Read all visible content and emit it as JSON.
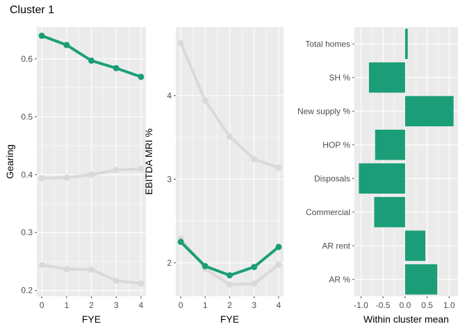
{
  "title": "Cluster 1",
  "colors": {
    "highlight": "#1b9e77",
    "muted": "#d9d9d9",
    "panel_bg": "#ebebeb"
  },
  "chart_data": [
    {
      "type": "line",
      "xlabel": "FYE",
      "ylabel": "Gearing",
      "x": [
        0,
        1,
        2,
        3,
        4
      ],
      "xlim": [
        -0.2,
        4.2
      ],
      "ylim": [
        0.19,
        0.655
      ],
      "yticks": [
        0.2,
        0.3,
        0.4,
        0.5,
        0.6
      ],
      "ytick_labels": [
        "0.2",
        "0.3",
        "0.4",
        "0.5",
        "0.6"
      ],
      "xtick_labels": [
        "0",
        "1",
        "2",
        "3",
        "4"
      ],
      "grid": true,
      "series": [
        {
          "values": [
            0.394,
            0.395,
            0.4,
            0.408,
            0.41
          ],
          "highlight": false
        },
        {
          "values": [
            0.244,
            0.237,
            0.236,
            0.217,
            0.212
          ],
          "highlight": false
        },
        {
          "values": [
            0.64,
            0.624,
            0.597,
            0.584,
            0.569
          ],
          "highlight": true
        }
      ]
    },
    {
      "type": "line",
      "xlabel": "FYE",
      "ylabel": "EBITDA MRI %",
      "x": [
        0,
        1,
        2,
        3,
        4
      ],
      "xlim": [
        -0.2,
        4.2
      ],
      "ylim": [
        1.6,
        4.82
      ],
      "yticks": [
        2,
        3,
        4
      ],
      "ytick_labels": [
        "2",
        "3",
        "4"
      ],
      "xtick_labels": [
        "0",
        "1",
        "2",
        "3",
        "4"
      ],
      "grid": true,
      "series": [
        {
          "values": [
            4.63,
            3.94,
            3.51,
            3.24,
            3.14
          ],
          "highlight": false
        },
        {
          "values": [
            2.29,
            1.93,
            1.74,
            1.75,
            1.98
          ],
          "highlight": false
        },
        {
          "values": [
            2.25,
            1.96,
            1.85,
            1.95,
            2.19
          ],
          "highlight": true
        }
      ]
    },
    {
      "type": "bar",
      "orientation": "horizontal",
      "xlabel": "Within cluster mean",
      "ylabel": "",
      "categories": [
        "Total homes",
        "SH %",
        "New supply %",
        "HOP %",
        "Disposals",
        "Commercial",
        "AR rent",
        "AR %"
      ],
      "values": [
        0.06,
        -0.82,
        1.1,
        -0.68,
        -1.05,
        -0.7,
        0.46,
        0.73
      ],
      "xlim": [
        -1.15,
        1.2
      ],
      "xticks": [
        -1.0,
        -0.5,
        0.0,
        0.5,
        1.0
      ],
      "xtick_labels": [
        "-1.0",
        "-0.5",
        "0.0",
        "0.5",
        "1.0"
      ],
      "grid": true
    }
  ]
}
